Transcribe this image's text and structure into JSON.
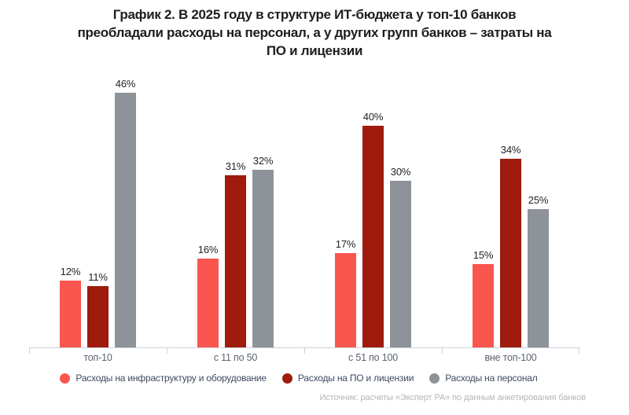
{
  "title": {
    "lines": [
      "График 2. В 2025 году в структуре ИТ-бюджета у топ-10 банков",
      "преобладали расходы на персонал, а у других групп банков – затраты на",
      "ПО и лицензии"
    ]
  },
  "chart_data": {
    "type": "bar",
    "title": "График 2. В 2025 году в структуре ИТ-бюджета у топ-10 банков преобладали расходы на персонал, а у других групп банков – затраты на ПО и лицензии",
    "categories": [
      "топ-10",
      "с 11 по 50",
      "с 51 по 100",
      "вне топ-100"
    ],
    "series": [
      {
        "name": "Расходы на инфраструктуру и оборудование",
        "color": "#f9564f",
        "values": [
          12,
          16,
          17,
          15
        ]
      },
      {
        "name": "Расходы на ПО и лицензии",
        "color": "#9e1b0e",
        "values": [
          11,
          31,
          40,
          34
        ]
      },
      {
        "name": "Расходы на персонал",
        "color": "#8e9399",
        "values": [
          46,
          32,
          30,
          25
        ]
      }
    ],
    "value_suffix": "%",
    "xlabel": "",
    "ylabel": "",
    "ylim": [
      0,
      49
    ],
    "grid": false,
    "legend_position": "bottom"
  },
  "source": "Источник: расчеты «Эксперт РА» по данным анкетирования банков"
}
